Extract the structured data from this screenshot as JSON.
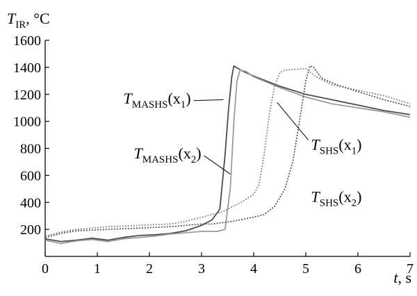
{
  "chart_data": {
    "type": "line",
    "y_axis": {
      "symbol": "T",
      "subscript": "IR",
      "unit": ", °C",
      "range": [
        0,
        1600
      ],
      "ticks": [
        200,
        400,
        600,
        800,
        1000,
        1200,
        1400,
        1600
      ]
    },
    "x_axis": {
      "symbol": "t",
      "unit": ", s",
      "range": [
        0,
        7
      ],
      "ticks": [
        0,
        1,
        2,
        3,
        4,
        5,
        6,
        7
      ]
    },
    "grid": false,
    "legend": "none",
    "series": [
      {
        "label_main": "T",
        "label_sub": "MASHS",
        "label_arg": "(x",
        "label_arg_sub": "1",
        "label_close": ")",
        "color": "#4a4a4a",
        "style": "solid",
        "points": [
          [
            0,
            130
          ],
          [
            0.3,
            110
          ],
          [
            0.6,
            120
          ],
          [
            0.9,
            135
          ],
          [
            1.2,
            120
          ],
          [
            1.5,
            140
          ],
          [
            1.8,
            155
          ],
          [
            2.1,
            160
          ],
          [
            2.4,
            170
          ],
          [
            2.7,
            190
          ],
          [
            3.0,
            230
          ],
          [
            3.2,
            270
          ],
          [
            3.35,
            350
          ],
          [
            3.45,
            750
          ],
          [
            3.52,
            1100
          ],
          [
            3.58,
            1330
          ],
          [
            3.62,
            1410
          ],
          [
            3.68,
            1395
          ],
          [
            3.8,
            1370
          ],
          [
            4.0,
            1335
          ],
          [
            4.5,
            1260
          ],
          [
            5.0,
            1200
          ],
          [
            5.5,
            1160
          ],
          [
            6.0,
            1120
          ],
          [
            6.5,
            1080
          ],
          [
            7.0,
            1050
          ]
        ]
      },
      {
        "label_main": "T",
        "label_sub": "MASHS",
        "label_arg": "(x",
        "label_arg_sub": "2",
        "label_close": ")",
        "color": "#9a9a9a",
        "style": "solid",
        "points": [
          [
            0,
            120
          ],
          [
            0.3,
            95
          ],
          [
            0.6,
            115
          ],
          [
            0.9,
            125
          ],
          [
            1.2,
            110
          ],
          [
            1.5,
            130
          ],
          [
            1.8,
            140
          ],
          [
            2.1,
            150
          ],
          [
            2.4,
            165
          ],
          [
            2.7,
            175
          ],
          [
            3.0,
            185
          ],
          [
            3.3,
            185
          ],
          [
            3.45,
            200
          ],
          [
            3.55,
            500
          ],
          [
            3.62,
            1000
          ],
          [
            3.68,
            1300
          ],
          [
            3.74,
            1380
          ],
          [
            3.85,
            1370
          ],
          [
            4.0,
            1330
          ],
          [
            4.5,
            1250
          ],
          [
            5.0,
            1180
          ],
          [
            5.5,
            1130
          ],
          [
            6.0,
            1100
          ],
          [
            6.5,
            1070
          ],
          [
            7.0,
            1030
          ]
        ]
      },
      {
        "label_main": "T",
        "label_sub": "SHS",
        "label_arg": "(x",
        "label_arg_sub": "1",
        "label_close": ")",
        "color": "#8a8a8a",
        "style": "dotted",
        "points": [
          [
            0,
            150
          ],
          [
            0.3,
            180
          ],
          [
            0.6,
            200
          ],
          [
            0.9,
            210
          ],
          [
            1.2,
            220
          ],
          [
            1.5,
            225
          ],
          [
            1.8,
            230
          ],
          [
            2.1,
            235
          ],
          [
            2.4,
            240
          ],
          [
            2.7,
            260
          ],
          [
            3.0,
            290
          ],
          [
            3.2,
            310
          ],
          [
            3.4,
            330
          ],
          [
            3.6,
            370
          ],
          [
            3.8,
            410
          ],
          [
            4.0,
            460
          ],
          [
            4.1,
            530
          ],
          [
            4.2,
            750
          ],
          [
            4.3,
            1050
          ],
          [
            4.4,
            1260
          ],
          [
            4.5,
            1360
          ],
          [
            4.6,
            1380
          ],
          [
            4.8,
            1385
          ],
          [
            5.0,
            1390
          ],
          [
            5.2,
            1330
          ],
          [
            5.5,
            1270
          ],
          [
            6.0,
            1230
          ],
          [
            6.5,
            1190
          ],
          [
            7.0,
            1130
          ]
        ]
      },
      {
        "label_main": "T",
        "label_sub": "SHS",
        "label_arg": "(x",
        "label_arg_sub": "2",
        "label_close": ")",
        "color": "#555555",
        "style": "dotted",
        "points": [
          [
            0,
            140
          ],
          [
            0.3,
            170
          ],
          [
            0.6,
            190
          ],
          [
            0.9,
            195
          ],
          [
            1.2,
            200
          ],
          [
            1.5,
            205
          ],
          [
            1.8,
            210
          ],
          [
            2.1,
            215
          ],
          [
            2.4,
            220
          ],
          [
            2.7,
            230
          ],
          [
            3.0,
            240
          ],
          [
            3.2,
            240
          ],
          [
            3.4,
            250
          ],
          [
            3.6,
            260
          ],
          [
            3.8,
            275
          ],
          [
            4.0,
            290
          ],
          [
            4.2,
            310
          ],
          [
            4.4,
            370
          ],
          [
            4.6,
            500
          ],
          [
            4.75,
            700
          ],
          [
            4.9,
            1050
          ],
          [
            5.0,
            1300
          ],
          [
            5.08,
            1410
          ],
          [
            5.15,
            1400
          ],
          [
            5.3,
            1320
          ],
          [
            5.6,
            1270
          ],
          [
            6.0,
            1220
          ],
          [
            6.5,
            1160
          ],
          [
            7.0,
            1110
          ]
        ]
      }
    ],
    "annotations": [
      {
        "series": 0,
        "label_at": [
          1.5,
          1133
        ],
        "point_at": [
          3.42,
          1160
        ]
      },
      {
        "series": 1,
        "label_at": [
          1.7,
          725
        ],
        "point_at": [
          3.55,
          610
        ]
      },
      {
        "series": 2,
        "label_at": [
          5.1,
          790
        ],
        "point_at": [
          4.45,
          1140
        ]
      },
      {
        "series": 3,
        "label_at": [
          5.1,
          405
        ],
        "point_at": null
      }
    ]
  }
}
